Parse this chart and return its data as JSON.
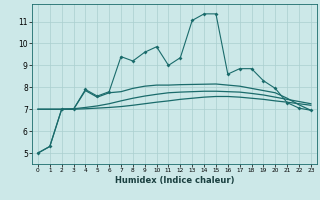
{
  "title": "",
  "xlabel": "Humidex (Indice chaleur)",
  "ylabel": "",
  "bg_color": "#cce8e8",
  "grid_color": "#aacfcf",
  "line_color": "#1a6b6b",
  "x_values": [
    0,
    1,
    2,
    3,
    4,
    5,
    6,
    7,
    8,
    9,
    10,
    11,
    12,
    13,
    14,
    15,
    16,
    17,
    18,
    19,
    20,
    21,
    22,
    23
  ],
  "line1": [
    5.0,
    5.3,
    7.0,
    7.0,
    7.9,
    7.6,
    7.8,
    9.4,
    9.2,
    9.6,
    9.85,
    9.0,
    9.35,
    11.05,
    11.35,
    11.35,
    8.6,
    8.85,
    8.85,
    8.3,
    7.95,
    7.3,
    7.05,
    6.95
  ],
  "line2": [
    5.0,
    5.3,
    7.0,
    7.0,
    7.85,
    7.55,
    7.75,
    7.8,
    7.95,
    8.05,
    8.1,
    8.1,
    8.12,
    8.13,
    8.14,
    8.15,
    8.1,
    8.05,
    7.95,
    7.85,
    7.75,
    7.5,
    7.2,
    6.95
  ],
  "line3": [
    7.0,
    7.0,
    7.0,
    7.0,
    7.02,
    7.05,
    7.08,
    7.12,
    7.18,
    7.25,
    7.32,
    7.38,
    7.45,
    7.5,
    7.55,
    7.58,
    7.58,
    7.55,
    7.5,
    7.45,
    7.38,
    7.32,
    7.25,
    7.18
  ],
  "line4": [
    7.0,
    7.0,
    7.0,
    7.02,
    7.08,
    7.15,
    7.25,
    7.38,
    7.5,
    7.6,
    7.68,
    7.75,
    7.78,
    7.8,
    7.82,
    7.82,
    7.8,
    7.78,
    7.72,
    7.65,
    7.55,
    7.45,
    7.35,
    7.25
  ],
  "ylim": [
    4.5,
    11.8
  ],
  "xlim": [
    -0.5,
    23.5
  ],
  "yticks": [
    5,
    6,
    7,
    8,
    9,
    10,
    11
  ],
  "xticks": [
    0,
    1,
    2,
    3,
    4,
    5,
    6,
    7,
    8,
    9,
    10,
    11,
    12,
    13,
    14,
    15,
    16,
    17,
    18,
    19,
    20,
    21,
    22,
    23
  ]
}
